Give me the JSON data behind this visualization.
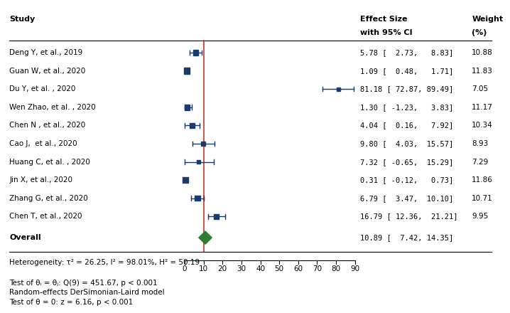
{
  "studies": [
    {
      "label": "Deng Y, et al., 2019",
      "effect": 5.78,
      "ci_lo": 2.73,
      "ci_hi": 8.83,
      "weight": 10.88
    },
    {
      "label": "Guan W, et al., 2020",
      "effect": 1.09,
      "ci_lo": 0.48,
      "ci_hi": 1.71,
      "weight": 11.83
    },
    {
      "label": "Du Y, et al. , 2020",
      "effect": 81.18,
      "ci_lo": 72.87,
      "ci_hi": 89.49,
      "weight": 7.05
    },
    {
      "label": "Wen Zhao, et al. , 2020",
      "effect": 1.3,
      "ci_lo": -1.23,
      "ci_hi": 3.83,
      "weight": 11.17
    },
    {
      "label": "Chen N , et al., 2020",
      "effect": 4.04,
      "ci_lo": 0.16,
      "ci_hi": 7.92,
      "weight": 10.34
    },
    {
      "label": "Cao J,  et al., 2020",
      "effect": 9.8,
      "ci_lo": 4.03,
      "ci_hi": 15.57,
      "weight": 8.93
    },
    {
      "label": "Huang C, et al. , 2020",
      "effect": 7.32,
      "ci_lo": -0.65,
      "ci_hi": 15.29,
      "weight": 7.29
    },
    {
      "label": "Jin X, et al., 2020",
      "effect": 0.31,
      "ci_lo": -0.12,
      "ci_hi": 0.73,
      "weight": 11.86
    },
    {
      "label": "Zhang G, et al., 2020",
      "effect": 6.79,
      "ci_lo": 3.47,
      "ci_hi": 10.1,
      "weight": 10.71
    },
    {
      "label": "Chen T, et al., 2020",
      "effect": 16.79,
      "ci_lo": 12.36,
      "ci_hi": 21.21,
      "weight": 9.95
    }
  ],
  "overall": {
    "label": "Overall",
    "effect": 10.89,
    "ci_lo": 7.42,
    "ci_hi": 14.35
  },
  "ci_strings": [
    "5.78 [  2.73,   8.83]",
    "1.09 [  0.48,   1.71]",
    "81.18 [ 72.87, 89.49]",
    "1.30 [ -1.23,   3.83]",
    "4.04 [  0.16,   7.92]",
    "9.80 [  4.03,  15.57]",
    "7.32 [ -0.65,  15.29]",
    "0.31 [ -0.12,   0.73]",
    "6.79 [  3.47,  10.10]",
    "16.79 [ 12.36,  21.21]"
  ],
  "weight_strings": [
    "10.88",
    "11.83",
    "7.05",
    "11.17",
    "10.34",
    "8.93",
    "7.29",
    "11.86",
    "10.71",
    "9.95"
  ],
  "overall_ci_str": "10.89 [  7.42, 14.35]",
  "xmin": 0,
  "xmax": 90,
  "xticks": [
    0,
    10,
    20,
    30,
    40,
    50,
    60,
    70,
    80,
    90
  ],
  "vline_x": 10,
  "square_color": "#1a3a6b",
  "diamond_color": "#2e7d32",
  "ci_line_color": "#1a3a6b",
  "vline_color": "#c0392b",
  "header_study": "Study",
  "header_effect_line1": "Effect Size",
  "header_effect_line2": "with 95% CI",
  "header_weight_line1": "Weight",
  "header_weight_line2": "(%)",
  "footer": "Random-effects DerSimonian-Laird model",
  "heterogeneity_text": "τ² = 26.25, I² = 98.01%, H² = 50.19",
  "test_theta_text": "Test of θᵢ = θⱼ: Q(9) = 451.67, p < 0.001",
  "test_zero_text": "Test of θ = 0: z = 6.16, p < 0.001"
}
